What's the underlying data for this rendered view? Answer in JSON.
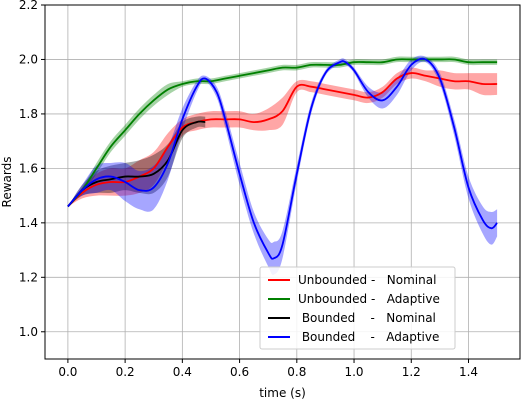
{
  "chart_data": {
    "type": "line",
    "title": "",
    "xlabel": "time (s)",
    "ylabel": "Rewards",
    "xlim": [
      -0.08,
      1.58
    ],
    "ylim": [
      0.9,
      2.2
    ],
    "xticks": [
      "0.0",
      "0.2",
      "0.4",
      "0.6",
      "0.8",
      "1.0",
      "1.2",
      "1.4"
    ],
    "yticks": [
      "1.0",
      "1.2",
      "1.4",
      "1.6",
      "1.8",
      "2.0",
      "2.2"
    ],
    "xtick_values": [
      0.0,
      0.2,
      0.4,
      0.6,
      0.8,
      1.0,
      1.2,
      1.4
    ],
    "ytick_values": [
      1.0,
      1.2,
      1.4,
      1.6,
      1.8,
      2.0,
      2.2
    ],
    "grid": true,
    "legend_position": "lower-right",
    "series": [
      {
        "name": "Unbounded -   Nominal",
        "color": "#ff0000",
        "x": [
          0.0,
          0.05,
          0.1,
          0.15,
          0.2,
          0.25,
          0.3,
          0.35,
          0.4,
          0.45,
          0.5,
          0.55,
          0.6,
          0.65,
          0.7,
          0.75,
          0.8,
          0.85,
          0.9,
          0.95,
          1.0,
          1.05,
          1.1,
          1.15,
          1.2,
          1.25,
          1.3,
          1.35,
          1.4,
          1.45,
          1.5
        ],
        "y": [
          1.46,
          1.51,
          1.54,
          1.55,
          1.55,
          1.57,
          1.6,
          1.68,
          1.75,
          1.77,
          1.78,
          1.78,
          1.78,
          1.77,
          1.78,
          1.81,
          1.9,
          1.9,
          1.89,
          1.88,
          1.87,
          1.86,
          1.88,
          1.93,
          1.95,
          1.94,
          1.93,
          1.92,
          1.92,
          1.91,
          1.91
        ],
        "spread": [
          0.0,
          0.02,
          0.04,
          0.05,
          0.05,
          0.06,
          0.06,
          0.05,
          0.03,
          0.03,
          0.03,
          0.03,
          0.03,
          0.03,
          0.04,
          0.05,
          0.02,
          0.02,
          0.02,
          0.02,
          0.02,
          0.02,
          0.02,
          0.02,
          0.02,
          0.02,
          0.03,
          0.03,
          0.03,
          0.04,
          0.04
        ]
      },
      {
        "name": "Unbounded -   Adaptive",
        "color": "#008000",
        "x": [
          0.0,
          0.05,
          0.1,
          0.15,
          0.2,
          0.25,
          0.3,
          0.35,
          0.4,
          0.45,
          0.5,
          0.55,
          0.6,
          0.65,
          0.7,
          0.75,
          0.8,
          0.85,
          0.9,
          0.95,
          1.0,
          1.05,
          1.1,
          1.15,
          1.2,
          1.25,
          1.3,
          1.35,
          1.4,
          1.45,
          1.5
        ],
        "y": [
          1.46,
          1.52,
          1.6,
          1.68,
          1.74,
          1.8,
          1.85,
          1.89,
          1.91,
          1.92,
          1.92,
          1.93,
          1.94,
          1.95,
          1.96,
          1.97,
          1.97,
          1.98,
          1.98,
          1.98,
          1.99,
          1.99,
          1.99,
          2.0,
          2.0,
          2.0,
          2.0,
          2.0,
          1.99,
          1.99,
          1.99
        ],
        "spread": [
          0.0,
          0.01,
          0.02,
          0.02,
          0.02,
          0.02,
          0.02,
          0.02,
          0.01,
          0.01,
          0.01,
          0.01,
          0.01,
          0.01,
          0.01,
          0.01,
          0.01,
          0.01,
          0.01,
          0.01,
          0.01,
          0.01,
          0.01,
          0.01,
          0.01,
          0.01,
          0.01,
          0.01,
          0.01,
          0.01,
          0.01
        ]
      },
      {
        "name": " Bounded    -   Nominal",
        "color": "#000000",
        "x": [
          0.0,
          0.05,
          0.1,
          0.15,
          0.2,
          0.25,
          0.3,
          0.35,
          0.4,
          0.45,
          0.48
        ],
        "y": [
          1.46,
          1.52,
          1.55,
          1.56,
          1.57,
          1.57,
          1.58,
          1.63,
          1.74,
          1.77,
          1.77
        ],
        "spread": [
          0.0,
          0.02,
          0.04,
          0.05,
          0.05,
          0.06,
          0.07,
          0.06,
          0.03,
          0.02,
          0.02
        ]
      },
      {
        "name": " Bounded    -   Adaptive",
        "color": "#0000ff",
        "x": [
          0.0,
          0.05,
          0.1,
          0.15,
          0.2,
          0.25,
          0.3,
          0.35,
          0.4,
          0.45,
          0.48,
          0.52,
          0.55,
          0.6,
          0.65,
          0.7,
          0.72,
          0.75,
          0.8,
          0.85,
          0.9,
          0.95,
          0.97,
          1.0,
          1.05,
          1.1,
          1.15,
          1.2,
          1.25,
          1.3,
          1.35,
          1.4,
          1.45,
          1.48,
          1.5
        ],
        "y": [
          1.46,
          1.52,
          1.56,
          1.57,
          1.55,
          1.52,
          1.53,
          1.62,
          1.78,
          1.9,
          1.93,
          1.88,
          1.78,
          1.58,
          1.4,
          1.29,
          1.27,
          1.32,
          1.58,
          1.82,
          1.95,
          1.99,
          1.99,
          1.96,
          1.88,
          1.85,
          1.9,
          1.98,
          2.0,
          1.93,
          1.75,
          1.53,
          1.41,
          1.38,
          1.4
        ],
        "spread": [
          0.0,
          0.02,
          0.05,
          0.05,
          0.07,
          0.07,
          0.08,
          0.06,
          0.04,
          0.02,
          0.01,
          0.02,
          0.03,
          0.04,
          0.04,
          0.05,
          0.06,
          0.05,
          0.03,
          0.02,
          0.01,
          0.01,
          0.01,
          0.01,
          0.02,
          0.03,
          0.03,
          0.02,
          0.01,
          0.02,
          0.03,
          0.04,
          0.05,
          0.06,
          0.05
        ]
      }
    ]
  }
}
